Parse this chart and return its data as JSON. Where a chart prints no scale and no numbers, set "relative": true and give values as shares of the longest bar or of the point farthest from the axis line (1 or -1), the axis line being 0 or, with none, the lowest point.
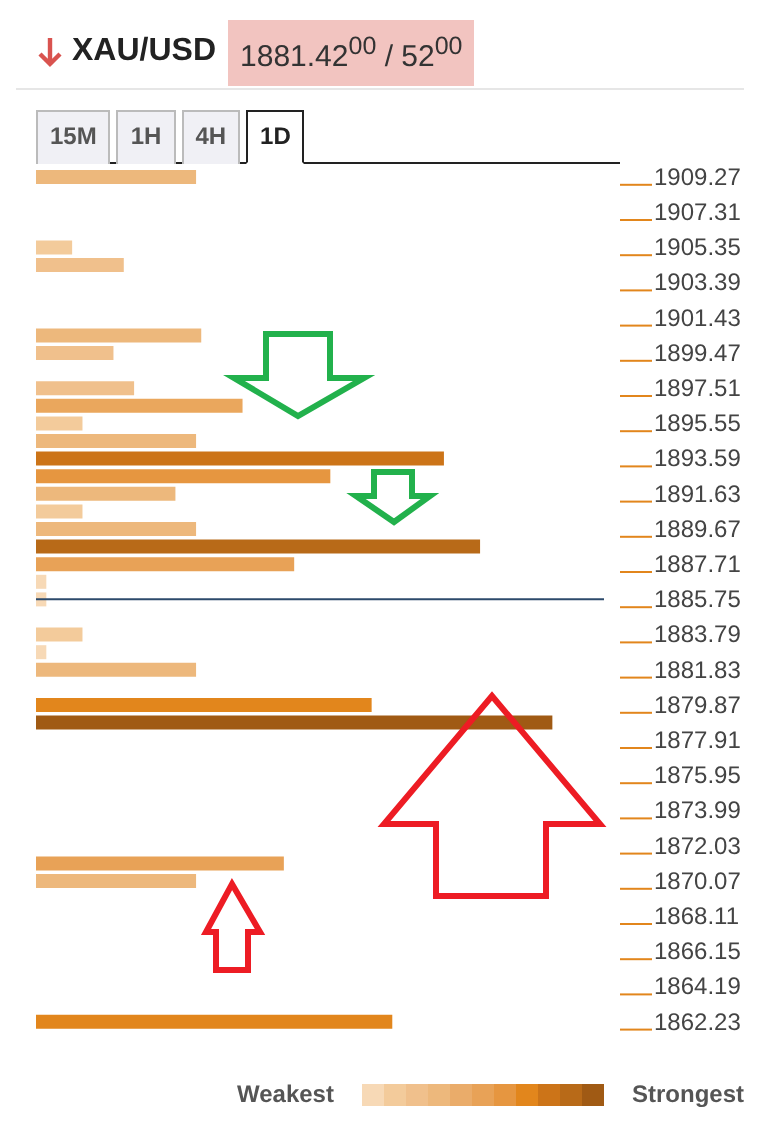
{
  "chart_data": {
    "type": "bar",
    "orientation": "horizontal",
    "relative": true,
    "title": "XAU/USD",
    "subtitle": "1881.42$^{00}$ / 52$^{00}$",
    "annotations": [
      "15M",
      "1H",
      "4H",
      "1D",
      "Weakest",
      "Strongest"
    ],
    "categories": [
      "1909.27",
      null,
      "1907.31",
      null,
      "1905.35",
      null,
      "1903.39",
      null,
      "1901.43",
      null,
      "1899.47",
      null,
      "1897.51",
      null,
      "1895.55",
      null,
      "1893.59",
      null,
      "1891.63",
      null,
      "1889.67",
      null,
      "1887.71",
      null,
      "1885.75",
      null,
      "1883.79",
      null,
      "1881.83",
      null,
      "1879.87",
      null,
      "1877.91",
      null,
      "1875.95",
      null,
      "1873.99",
      null,
      "1872.03",
      null,
      "1870.07",
      null,
      "1868.11",
      null,
      "1866.15",
      null,
      "1864.19",
      null,
      "1862.23",
      null
    ],
    "values": [
      0.31,
      null,
      null,
      null,
      0.07,
      0.17,
      null,
      null,
      null,
      0.32,
      0.15,
      null,
      0.19,
      0.4,
      0.09,
      0.31,
      0.79,
      0.57,
      0.27,
      0.09,
      0.31,
      0.86,
      0.5,
      0.02,
      0.02,
      null,
      0.09,
      0.02,
      0.31,
      null,
      0.65,
      1,
      null,
      null,
      null,
      null,
      null,
      null,
      null,
      0.48,
      0.31,
      null,
      null,
      null,
      null,
      null,
      null,
      null,
      0.69,
      null
    ],
    "colors": [
      "#edb87c",
      null,
      null,
      null,
      "#f3cb9b",
      "#f0c08c",
      null,
      null,
      null,
      "#edb87c",
      "#f0c08c",
      null,
      "#f0c08c",
      "#eaa75d",
      "#f3cb9b",
      "#edb87c",
      "#cc7418",
      "#e69640",
      "#edb87c",
      "#f3cb9b",
      "#edb87c",
      "#b86a18",
      "#e8a257",
      "#f7d9b6",
      "#f7d9b6",
      null,
      "#f3cb9b",
      "#f7d9b6",
      "#edb87c",
      null,
      "#e2861c",
      "#a05a14",
      null,
      null,
      null,
      null,
      null,
      null,
      null,
      "#e8a257",
      "#edb87c",
      null,
      null,
      null,
      null,
      null,
      null,
      null,
      "#e2861c",
      null
    ],
    "ref_lines": [
      {
        "axis": "y",
        "value": "1885.75",
        "color": "#2c4a6b"
      }
    ]
  }
}
